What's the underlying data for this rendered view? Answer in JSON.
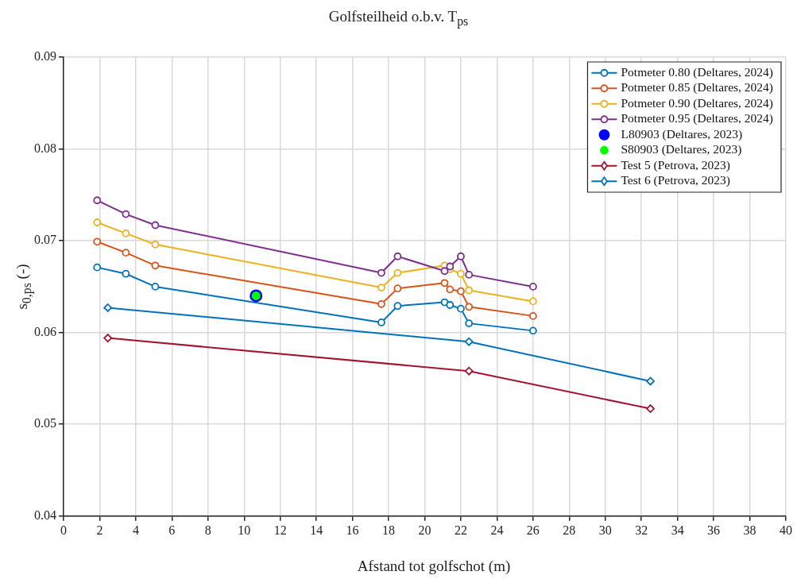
{
  "chart_data": {
    "type": "line",
    "title": "Golfsteilheid o.b.v. T$_{ps}$",
    "xlabel": "Afstand tot golfschot (m)",
    "ylabel": "s$_{0,ps}$ (-)",
    "x": [
      1.86,
      3.45,
      5.08,
      17.6,
      18.5,
      21.1,
      21.4,
      22.0,
      22.45,
      26.0
    ],
    "series": [
      {
        "name": "Potmeter 0.80 (Deltares, 2024)",
        "color": "#0072bd",
        "marker": "circle",
        "values": [
          0.0671,
          0.0664,
          0.065,
          0.0611,
          0.0629,
          0.0633,
          0.063,
          0.0626,
          0.061,
          0.0602
        ]
      },
      {
        "name": "Potmeter 0.85 (Deltares, 2024)",
        "color": "#d95319",
        "marker": "circle",
        "values": [
          0.0699,
          0.0687,
          0.0673,
          0.0631,
          0.0648,
          0.0654,
          0.0647,
          0.0645,
          0.0628,
          0.0618
        ]
      },
      {
        "name": "Potmeter 0.90 (Deltares, 2024)",
        "color": "#edb120",
        "marker": "circle",
        "values": [
          0.072,
          0.0708,
          0.0696,
          0.0649,
          0.0665,
          0.0673,
          0.0669,
          0.0664,
          0.0646,
          0.0634
        ]
      },
      {
        "name": "Potmeter 0.95 (Deltares, 2024)",
        "color": "#7e2f8e",
        "marker": "circle",
        "values": [
          0.0744,
          0.0729,
          0.0717,
          0.0665,
          0.0683,
          0.0667,
          0.0672,
          0.0683,
          0.0663,
          0.065
        ]
      },
      {
        "name": "L80903 (Deltares, 2023)",
        "type": "scatter",
        "color": "#0000ff",
        "marker": "circle",
        "x": [
          10.66
        ],
        "values": [
          0.064
        ]
      },
      {
        "name": "S80903 (Deltares, 2023)",
        "type": "scatter",
        "color": "#00ff00",
        "marker": "circle",
        "x": [
          10.66
        ],
        "values": [
          0.064
        ]
      },
      {
        "name": "Test 5 (Petrova, 2023)",
        "color": "#a2142f",
        "marker": "diamond",
        "x": [
          2.45,
          22.45,
          32.5
        ],
        "values": [
          0.0594,
          0.0558,
          0.0517
        ]
      },
      {
        "name": "Test 6 (Petrova, 2023)",
        "color": "#0072bd",
        "marker": "diamond",
        "x": [
          2.45,
          22.45,
          32.5
        ],
        "values": [
          0.0627,
          0.059,
          0.0547
        ]
      }
    ],
    "xlim": [
      0,
      40
    ],
    "xticks": [
      0,
      2,
      4,
      6,
      8,
      10,
      12,
      14,
      16,
      18,
      20,
      22,
      24,
      26,
      28,
      30,
      32,
      34,
      36,
      38,
      40
    ],
    "ylim": [
      0.04,
      0.09
    ],
    "yticks": [
      0.04,
      0.05,
      0.06,
      0.07,
      0.08,
      0.09
    ],
    "grid": true,
    "legend": "top right"
  }
}
